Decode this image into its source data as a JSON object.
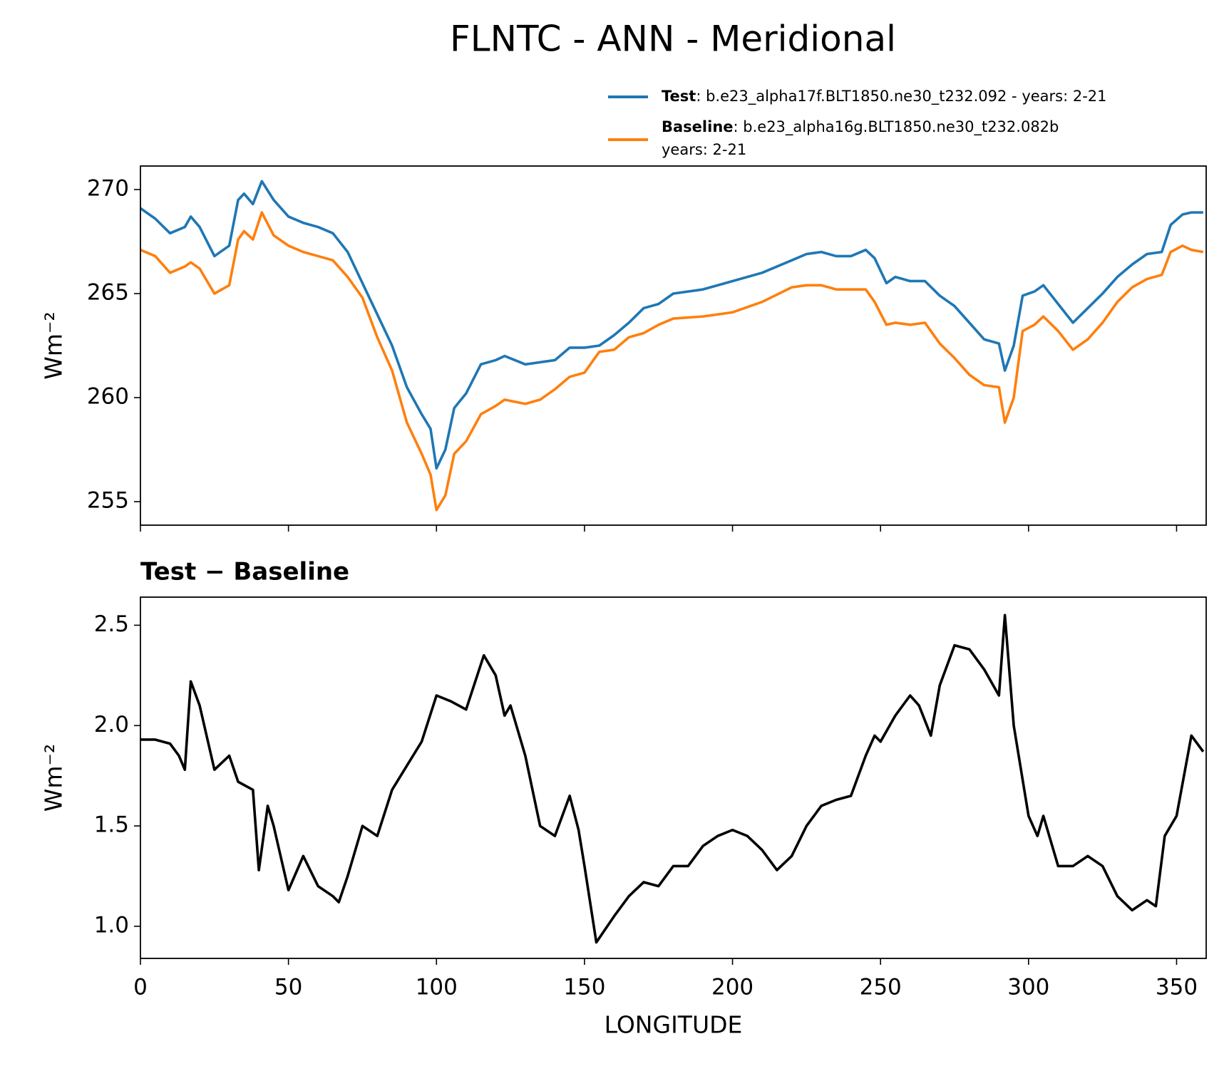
{
  "title": "FLNTC - ANN - Meridional",
  "chart_data": [
    {
      "type": "line",
      "ylabel": "Wm⁻²",
      "xlim": [
        0,
        360
      ],
      "xticks": [
        0,
        50,
        100,
        150,
        200,
        250,
        300,
        350
      ],
      "ylim": [
        253.87,
        271.13
      ],
      "yticks": [
        255,
        260,
        265,
        270
      ],
      "x": [
        0,
        5,
        10,
        15,
        17,
        20,
        25,
        30,
        33,
        35,
        38,
        41,
        45,
        50,
        55,
        60,
        65,
        70,
        75,
        80,
        85,
        90,
        95,
        98,
        100,
        103,
        106,
        110,
        115,
        120,
        123,
        130,
        135,
        140,
        145,
        150,
        155,
        160,
        165,
        170,
        175,
        180,
        190,
        200,
        210,
        220,
        225,
        230,
        235,
        240,
        245,
        248,
        252,
        255,
        260,
        265,
        270,
        275,
        280,
        285,
        290,
        292,
        295,
        298,
        302,
        305,
        310,
        315,
        320,
        325,
        330,
        335,
        340,
        345,
        348,
        352,
        355,
        359
      ],
      "series": [
        {
          "name": "Test",
          "label": [
            ": b.e23_alpha17f.BLT1850.ne30_t232.092 - years: 2-21"
          ],
          "color": "#1f77b4",
          "values": [
            269.1,
            268.6,
            267.9,
            268.2,
            268.7,
            268.2,
            266.8,
            267.3,
            269.5,
            269.8,
            269.3,
            270.4,
            269.5,
            268.7,
            268.4,
            268.2,
            267.9,
            267.0,
            265.5,
            264.0,
            262.5,
            260.5,
            259.2,
            258.5,
            256.6,
            257.5,
            259.5,
            260.2,
            261.6,
            261.8,
            262.0,
            261.6,
            261.7,
            261.8,
            262.4,
            262.4,
            262.5,
            263.0,
            263.6,
            264.3,
            264.5,
            265.0,
            265.2,
            265.6,
            266.0,
            266.6,
            266.9,
            267.0,
            266.8,
            266.8,
            267.1,
            266.7,
            265.5,
            265.8,
            265.6,
            265.6,
            264.9,
            264.4,
            263.6,
            262.8,
            262.6,
            261.3,
            262.5,
            264.9,
            265.1,
            265.4,
            264.5,
            263.6,
            264.3,
            265.0,
            265.8,
            266.4,
            266.9,
            267.0,
            268.3,
            268.8,
            268.9,
            268.9
          ]
        },
        {
          "name": "Baseline",
          "label": [
            ": b.e23_alpha16g.BLT1850.ne30_t232.082b",
            "years: 2-21"
          ],
          "color": "#ff7f0e",
          "values": [
            267.1,
            266.8,
            266.0,
            266.3,
            266.5,
            266.2,
            265.0,
            265.4,
            267.6,
            268.0,
            267.6,
            268.9,
            267.8,
            267.3,
            267.0,
            266.8,
            266.6,
            265.8,
            264.8,
            262.9,
            261.3,
            258.8,
            257.3,
            256.3,
            254.6,
            255.3,
            257.3,
            257.9,
            259.2,
            259.6,
            259.9,
            259.7,
            259.9,
            260.4,
            261.0,
            261.2,
            262.2,
            262.3,
            262.9,
            263.1,
            263.5,
            263.8,
            263.9,
            264.1,
            264.6,
            265.3,
            265.4,
            265.4,
            265.2,
            265.2,
            265.2,
            264.6,
            263.5,
            263.6,
            263.5,
            263.6,
            262.6,
            261.9,
            261.1,
            260.6,
            260.5,
            258.8,
            260.0,
            263.2,
            263.5,
            263.9,
            263.2,
            262.3,
            262.8,
            263.6,
            264.6,
            265.3,
            265.7,
            265.9,
            267.0,
            267.3,
            267.1,
            267.0
          ]
        }
      ]
    },
    {
      "type": "line",
      "subtitle": "Test − Baseline",
      "xlabel": "LONGITUDE",
      "ylabel": "Wm⁻²",
      "xlim": [
        0,
        360
      ],
      "xticks": [
        0,
        50,
        100,
        150,
        200,
        250,
        300,
        350
      ],
      "ylim": [
        0.84,
        2.64
      ],
      "yticks": [
        {
          "value": 1,
          "label": "1.0"
        },
        1.5,
        {
          "value": 2,
          "label": "2.0"
        },
        2.5
      ],
      "x": [
        0,
        5,
        10,
        13,
        15,
        17,
        20,
        25,
        30,
        33,
        38,
        40,
        43,
        45,
        50,
        55,
        60,
        65,
        67,
        70,
        75,
        80,
        85,
        90,
        95,
        100,
        105,
        110,
        116,
        120,
        123,
        125,
        130,
        135,
        140,
        145,
        148,
        150,
        154,
        160,
        165,
        170,
        175,
        180,
        185,
        190,
        195,
        200,
        205,
        210,
        215,
        220,
        225,
        230,
        235,
        240,
        245,
        248,
        250,
        255,
        260,
        263,
        267,
        270,
        275,
        280,
        285,
        290,
        292,
        295,
        300,
        303,
        305,
        310,
        315,
        320,
        325,
        330,
        335,
        340,
        343,
        346,
        350,
        355,
        359
      ],
      "series": [
        {
          "name": "Test − Baseline",
          "color": "#000000",
          "values": [
            1.93,
            1.93,
            1.91,
            1.85,
            1.78,
            2.22,
            2.1,
            1.78,
            1.85,
            1.72,
            1.68,
            1.28,
            1.6,
            1.5,
            1.18,
            1.35,
            1.2,
            1.15,
            1.12,
            1.25,
            1.5,
            1.45,
            1.68,
            1.8,
            1.92,
            2.15,
            2.12,
            2.08,
            2.35,
            2.25,
            2.05,
            2.1,
            1.85,
            1.5,
            1.45,
            1.65,
            1.48,
            1.3,
            0.92,
            1.05,
            1.15,
            1.22,
            1.2,
            1.3,
            1.3,
            1.4,
            1.45,
            1.48,
            1.45,
            1.38,
            1.28,
            1.35,
            1.5,
            1.6,
            1.63,
            1.65,
            1.85,
            1.95,
            1.92,
            2.05,
            2.15,
            2.1,
            1.95,
            2.2,
            2.4,
            2.38,
            2.28,
            2.15,
            2.55,
            2.0,
            1.55,
            1.45,
            1.55,
            1.3,
            1.3,
            1.35,
            1.3,
            1.15,
            1.08,
            1.13,
            1.1,
            1.45,
            1.55,
            1.95,
            1.87
          ]
        }
      ]
    }
  ]
}
